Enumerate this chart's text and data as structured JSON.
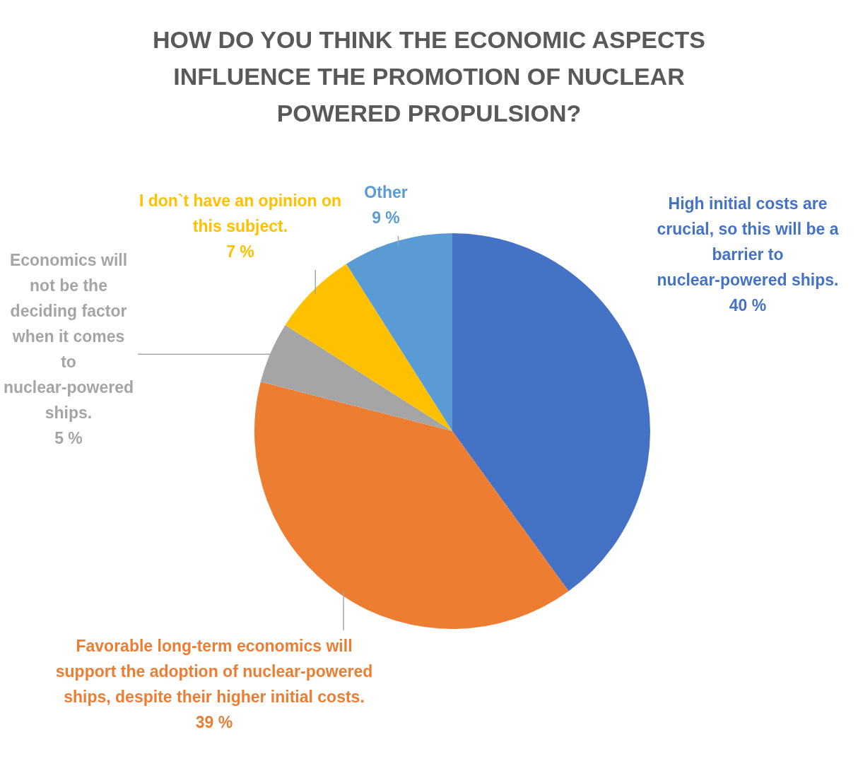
{
  "chart_data": {
    "type": "pie",
    "title": "HOW DO YOU THINK THE ECONOMIC ASPECTS INFLUENCE THE PROMOTION OF NUCLEAR POWERED PROPULSION?",
    "categories": [
      "High initial costs are crucial, so this will be a barrier to nuclear-powered ships.",
      "Favorable long-term economics will support the adoption of nuclear-powered ships, despite their higher initial costs.",
      "Economics will not be the deciding factor when it comes to nuclear-powered ships.",
      "I don`t have an opinion on this subject.",
      "Other"
    ],
    "values": [
      40,
      39,
      5,
      7,
      9
    ],
    "colors": [
      "#4472c4",
      "#ed7d31",
      "#a5a5a5",
      "#ffc000",
      "#5b9bd5"
    ],
    "value_labels": [
      "40 %",
      "39 %",
      "5 %",
      "7 %",
      "9 %"
    ],
    "legend": false
  }
}
